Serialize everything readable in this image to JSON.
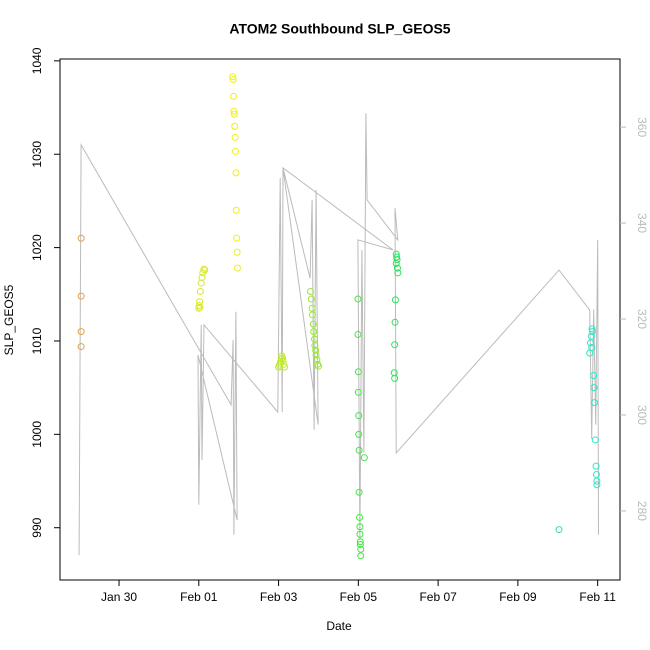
{
  "chart_data": {
    "type": "scatter",
    "title": "ATOM2 Southbound SLP_GEOS5",
    "xlabel": "Date",
    "ylabel": "SLP_GEOS5",
    "xlim": [
      28.52,
      42.56
    ],
    "ylim": [
      984.4,
      1040.2
    ],
    "y2lim": [
      265.6,
      374.2
    ],
    "xticks": [
      {
        "value": 30,
        "label": "Jan 30"
      },
      {
        "value": 32,
        "label": "Feb 01"
      },
      {
        "value": 34,
        "label": "Feb 03"
      },
      {
        "value": 36,
        "label": "Feb 05"
      },
      {
        "value": 38,
        "label": "Feb 07"
      },
      {
        "value": 40,
        "label": "Feb 09"
      },
      {
        "value": 42,
        "label": "Feb 11"
      }
    ],
    "yticks": [
      990,
      1000,
      1010,
      1020,
      1030,
      1040
    ],
    "y2ticks": [
      280,
      300,
      320,
      340,
      360
    ],
    "y2tick_color": "#bbbbbb",
    "series": [
      {
        "type": "line",
        "axis": "y2",
        "color": "#bbbbbb",
        "x": [
          29.0,
          29.05,
          32.81,
          32.86,
          32.88,
          32.93,
          32.96,
          31.98,
          32.0,
          32.06,
          32.08,
          32.13,
          33.98,
          34.04,
          34.09,
          34.11,
          34.79,
          34.84,
          34.89,
          34.94,
          34.99,
          34.11,
          36.87,
          35.99,
          36.04,
          36.09,
          36.14,
          36.19,
          36.22,
          36.99,
          36.92,
          36.95,
          41.03,
          41.8,
          41.85,
          41.9,
          41.95,
          42.0,
          42.02
        ],
        "values": [
          270.8,
          356.3,
          302.1,
          315.6,
          275,
          321.5,
          278.1,
          312.5,
          281.3,
          318.8,
          290.6,
          318.8,
          300.6,
          349.4,
          300.6,
          351.5,
          328.5,
          344.8,
          296.9,
          346.9,
          298,
          351.5,
          334.4,
          336.5,
          274,
          334.4,
          292.1,
          362.9,
          344.8,
          336.5,
          343.1,
          292.1,
          330.2,
          321.9,
          295,
          322,
          298,
          336.5,
          275
        ]
      },
      {
        "color": "#e8a040",
        "x": [
          29.05,
          29.05,
          29.05,
          29.05
        ],
        "values": [
          1021,
          1014.8,
          1011,
          1009.4
        ]
      },
      {
        "color": "#d8e830",
        "x": [
          32.0,
          32.02,
          32.04,
          32.06,
          32.08,
          32.1,
          32.13,
          32.15,
          32.01,
          32.03
        ],
        "values": [
          1013.5,
          1014.2,
          1015.3,
          1016.2,
          1016.8,
          1017.3,
          1017.7,
          1017.6,
          1013.8,
          1013.6
        ]
      },
      {
        "color": "#eef020",
        "x": [
          32.85,
          32.86,
          32.87,
          32.88,
          32.89,
          32.9,
          32.91,
          32.92,
          32.93,
          32.94,
          32.95,
          32.96,
          32.97
        ],
        "values": [
          1038.3,
          1038,
          1036.2,
          1034.6,
          1034.3,
          1033,
          1031.8,
          1030.3,
          1028,
          1024,
          1021,
          1019.5,
          1017.8
        ]
      },
      {
        "color": "#c0ec30",
        "x": [
          34.0,
          34.02,
          34.04,
          34.05,
          34.07,
          34.08,
          34.1,
          34.11,
          34.13,
          34.15
        ],
        "values": [
          1007.2,
          1007.4,
          1007.6,
          1007.8,
          1008.1,
          1008.4,
          1008.2,
          1007.9,
          1007.5,
          1007.2
        ]
      },
      {
        "color": "#98e830",
        "x": [
          34.8,
          34.82,
          34.84,
          34.85,
          34.87,
          34.88,
          34.9,
          34.91,
          34.93,
          34.94,
          34.96,
          34.98,
          35.0
        ],
        "values": [
          1015.3,
          1014.5,
          1013.5,
          1012.8,
          1011.8,
          1011,
          1010.2,
          1009.5,
          1009,
          1008.5,
          1008,
          1007.5,
          1007.3
        ]
      },
      {
        "color": "#40e840",
        "x": [
          35.99,
          35.99,
          36.0,
          36.0,
          36.01,
          36.01,
          36.02,
          36.15,
          36.02,
          36.03,
          36.04,
          36.04,
          36.05,
          36.05,
          36.06,
          36.06
        ],
        "values": [
          1014.5,
          1010.7,
          1006.7,
          1004.5,
          1002,
          1000,
          998.3,
          997.5,
          993.8,
          991.1,
          990.1,
          989.3,
          988.5,
          988.2,
          987.7,
          987
        ]
      },
      {
        "color": "#30e060",
        "x": [
          36.95,
          36.96,
          36.97,
          36.95,
          36.98,
          36.99,
          36.93,
          36.92,
          36.91,
          36.9,
          36.91
        ],
        "values": [
          1019.3,
          1019,
          1018.7,
          1018.3,
          1017.8,
          1017.3,
          1014.4,
          1012,
          1009.6,
          1006.6,
          1006
        ]
      },
      {
        "color": "#30e0a8",
        "x": [
          41.03
        ],
        "values": [
          989.8
        ]
      },
      {
        "color": "#30e8c8",
        "x": [
          41.86,
          41.87,
          41.84,
          41.82,
          41.85,
          41.8,
          41.9,
          41.91,
          41.92,
          41.94,
          41.96,
          41.97,
          41.98,
          41.98
        ],
        "values": [
          1011.3,
          1011,
          1010.5,
          1009.8,
          1009.3,
          1008.7,
          1006.3,
          1005,
          1003.4,
          999.4,
          996.6,
          995.7,
          995,
          994.6
        ]
      }
    ]
  }
}
